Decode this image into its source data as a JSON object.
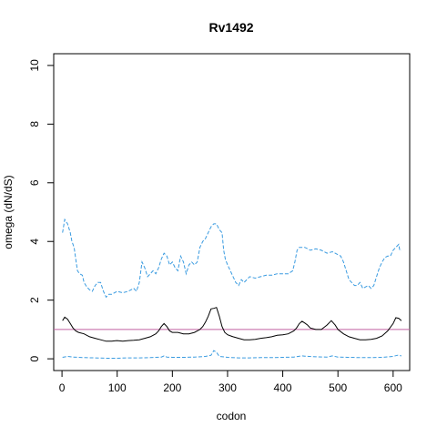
{
  "chart_data": {
    "type": "line",
    "title": "Rv1492",
    "xlabel": "codon",
    "ylabel": "omega (dN/dS)",
    "xlim": [
      -15,
      630
    ],
    "ylim": [
      -0.4,
      10.4
    ],
    "xticks": [
      0,
      100,
      200,
      300,
      400,
      500,
      600
    ],
    "yticks": [
      0,
      2,
      4,
      6,
      8,
      10
    ],
    "reference_line": {
      "y": 1,
      "color": "#c060a0"
    },
    "series": [
      {
        "role": "upper",
        "color": "#3a9be0",
        "style": "dashed",
        "points": [
          [
            1,
            4.3
          ],
          [
            5,
            4.75
          ],
          [
            10,
            4.6
          ],
          [
            15,
            4.3
          ],
          [
            18,
            4.0
          ],
          [
            22,
            3.8
          ],
          [
            25,
            3.4
          ],
          [
            28,
            3.0
          ],
          [
            32,
            2.9
          ],
          [
            37,
            2.85
          ],
          [
            40,
            2.6
          ],
          [
            45,
            2.45
          ],
          [
            50,
            2.35
          ],
          [
            55,
            2.3
          ],
          [
            60,
            2.5
          ],
          [
            65,
            2.6
          ],
          [
            70,
            2.6
          ],
          [
            75,
            2.3
          ],
          [
            80,
            2.1
          ],
          [
            85,
            2.2
          ],
          [
            90,
            2.2
          ],
          [
            100,
            2.3
          ],
          [
            110,
            2.25
          ],
          [
            120,
            2.3
          ],
          [
            130,
            2.4
          ],
          [
            135,
            2.3
          ],
          [
            140,
            2.6
          ],
          [
            145,
            3.3
          ],
          [
            150,
            3.1
          ],
          [
            155,
            2.8
          ],
          [
            160,
            2.9
          ],
          [
            165,
            3.0
          ],
          [
            170,
            2.9
          ],
          [
            175,
            3.1
          ],
          [
            180,
            3.4
          ],
          [
            185,
            3.6
          ],
          [
            190,
            3.5
          ],
          [
            195,
            3.2
          ],
          [
            200,
            3.3
          ],
          [
            205,
            3.1
          ],
          [
            210,
            3.0
          ],
          [
            215,
            3.5
          ],
          [
            220,
            3.3
          ],
          [
            225,
            2.9
          ],
          [
            230,
            3.2
          ],
          [
            235,
            3.3
          ],
          [
            240,
            3.2
          ],
          [
            245,
            3.3
          ],
          [
            250,
            3.8
          ],
          [
            255,
            4.0
          ],
          [
            260,
            4.1
          ],
          [
            265,
            4.3
          ],
          [
            270,
            4.5
          ],
          [
            275,
            4.6
          ],
          [
            280,
            4.6
          ],
          [
            285,
            4.4
          ],
          [
            290,
            4.3
          ],
          [
            293,
            3.7
          ],
          [
            296,
            3.4
          ],
          [
            300,
            3.2
          ],
          [
            305,
            3.0
          ],
          [
            310,
            2.8
          ],
          [
            315,
            2.6
          ],
          [
            320,
            2.5
          ],
          [
            325,
            2.7
          ],
          [
            330,
            2.6
          ],
          [
            340,
            2.8
          ],
          [
            350,
            2.75
          ],
          [
            360,
            2.8
          ],
          [
            370,
            2.85
          ],
          [
            380,
            2.85
          ],
          [
            390,
            2.9
          ],
          [
            400,
            2.9
          ],
          [
            410,
            2.9
          ],
          [
            418,
            3.0
          ],
          [
            422,
            3.3
          ],
          [
            426,
            3.7
          ],
          [
            430,
            3.8
          ],
          [
            440,
            3.8
          ],
          [
            450,
            3.7
          ],
          [
            460,
            3.75
          ],
          [
            470,
            3.7
          ],
          [
            480,
            3.6
          ],
          [
            490,
            3.65
          ],
          [
            500,
            3.55
          ],
          [
            505,
            3.5
          ],
          [
            510,
            3.3
          ],
          [
            515,
            3.0
          ],
          [
            520,
            2.7
          ],
          [
            525,
            2.6
          ],
          [
            530,
            2.5
          ],
          [
            535,
            2.5
          ],
          [
            540,
            2.6
          ],
          [
            545,
            2.4
          ],
          [
            550,
            2.45
          ],
          [
            555,
            2.5
          ],
          [
            560,
            2.4
          ],
          [
            565,
            2.5
          ],
          [
            570,
            2.8
          ],
          [
            575,
            3.1
          ],
          [
            580,
            3.3
          ],
          [
            585,
            3.45
          ],
          [
            590,
            3.5
          ],
          [
            595,
            3.5
          ],
          [
            600,
            3.7
          ],
          [
            605,
            3.8
          ],
          [
            610,
            3.9
          ],
          [
            612,
            3.7
          ],
          [
            615,
            3.7
          ]
        ]
      },
      {
        "role": "estimate",
        "color": "#000000",
        "style": "solid",
        "points": [
          [
            1,
            1.3
          ],
          [
            5,
            1.42
          ],
          [
            10,
            1.35
          ],
          [
            15,
            1.2
          ],
          [
            20,
            1.05
          ],
          [
            25,
            0.95
          ],
          [
            30,
            0.9
          ],
          [
            40,
            0.85
          ],
          [
            50,
            0.75
          ],
          [
            60,
            0.7
          ],
          [
            70,
            0.65
          ],
          [
            80,
            0.6
          ],
          [
            90,
            0.6
          ],
          [
            100,
            0.62
          ],
          [
            110,
            0.6
          ],
          [
            120,
            0.62
          ],
          [
            130,
            0.63
          ],
          [
            140,
            0.65
          ],
          [
            150,
            0.7
          ],
          [
            160,
            0.75
          ],
          [
            170,
            0.85
          ],
          [
            175,
            0.95
          ],
          [
            180,
            1.1
          ],
          [
            185,
            1.2
          ],
          [
            190,
            1.1
          ],
          [
            195,
            0.95
          ],
          [
            200,
            0.9
          ],
          [
            210,
            0.9
          ],
          [
            220,
            0.85
          ],
          [
            230,
            0.85
          ],
          [
            240,
            0.9
          ],
          [
            250,
            1.0
          ],
          [
            255,
            1.1
          ],
          [
            260,
            1.25
          ],
          [
            265,
            1.45
          ],
          [
            270,
            1.7
          ],
          [
            275,
            1.72
          ],
          [
            280,
            1.75
          ],
          [
            285,
            1.45
          ],
          [
            290,
            1.1
          ],
          [
            295,
            0.9
          ],
          [
            300,
            0.82
          ],
          [
            310,
            0.75
          ],
          [
            320,
            0.7
          ],
          [
            330,
            0.65
          ],
          [
            340,
            0.65
          ],
          [
            350,
            0.66
          ],
          [
            360,
            0.7
          ],
          [
            370,
            0.72
          ],
          [
            380,
            0.75
          ],
          [
            390,
            0.8
          ],
          [
            400,
            0.82
          ],
          [
            410,
            0.85
          ],
          [
            420,
            0.95
          ],
          [
            425,
            1.05
          ],
          [
            430,
            1.2
          ],
          [
            435,
            1.28
          ],
          [
            440,
            1.22
          ],
          [
            445,
            1.15
          ],
          [
            450,
            1.05
          ],
          [
            460,
            1.0
          ],
          [
            470,
            1.0
          ],
          [
            480,
            1.15
          ],
          [
            488,
            1.3
          ],
          [
            495,
            1.15
          ],
          [
            500,
            1.0
          ],
          [
            510,
            0.85
          ],
          [
            520,
            0.75
          ],
          [
            530,
            0.7
          ],
          [
            540,
            0.65
          ],
          [
            550,
            0.65
          ],
          [
            560,
            0.66
          ],
          [
            570,
            0.7
          ],
          [
            580,
            0.78
          ],
          [
            590,
            0.95
          ],
          [
            600,
            1.2
          ],
          [
            605,
            1.4
          ],
          [
            610,
            1.38
          ],
          [
            615,
            1.3
          ]
        ]
      },
      {
        "role": "lower",
        "color": "#3a9be0",
        "style": "dashed",
        "points": [
          [
            1,
            0.05
          ],
          [
            10,
            0.08
          ],
          [
            20,
            0.06
          ],
          [
            40,
            0.04
          ],
          [
            60,
            0.03
          ],
          [
            80,
            0.02
          ],
          [
            100,
            0.02
          ],
          [
            120,
            0.03
          ],
          [
            140,
            0.03
          ],
          [
            160,
            0.04
          ],
          [
            180,
            0.06
          ],
          [
            185,
            0.1
          ],
          [
            190,
            0.06
          ],
          [
            200,
            0.05
          ],
          [
            220,
            0.05
          ],
          [
            240,
            0.06
          ],
          [
            260,
            0.08
          ],
          [
            270,
            0.12
          ],
          [
            275,
            0.28
          ],
          [
            280,
            0.22
          ],
          [
            285,
            0.08
          ],
          [
            300,
            0.05
          ],
          [
            320,
            0.03
          ],
          [
            340,
            0.03
          ],
          [
            360,
            0.04
          ],
          [
            380,
            0.04
          ],
          [
            400,
            0.05
          ],
          [
            420,
            0.06
          ],
          [
            435,
            0.1
          ],
          [
            440,
            0.09
          ],
          [
            460,
            0.07
          ],
          [
            480,
            0.06
          ],
          [
            490,
            0.1
          ],
          [
            500,
            0.06
          ],
          [
            520,
            0.05
          ],
          [
            540,
            0.04
          ],
          [
            560,
            0.04
          ],
          [
            580,
            0.05
          ],
          [
            600,
            0.08
          ],
          [
            608,
            0.12
          ],
          [
            615,
            0.1
          ]
        ]
      }
    ]
  }
}
